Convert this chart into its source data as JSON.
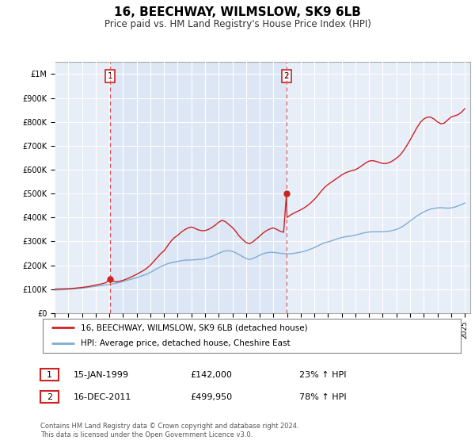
{
  "title": "16, BEECHWAY, WILMSLOW, SK9 6LB",
  "subtitle": "Price paid vs. HM Land Registry's House Price Index (HPI)",
  "title_fontsize": 11,
  "subtitle_fontsize": 8.5,
  "ylim": [
    0,
    1050000
  ],
  "yticks": [
    0,
    100000,
    200000,
    300000,
    400000,
    500000,
    600000,
    700000,
    800000,
    900000,
    1000000
  ],
  "ytick_labels": [
    "£0",
    "£100K",
    "£200K",
    "£300K",
    "£400K",
    "£500K",
    "£600K",
    "£700K",
    "£800K",
    "£900K",
    "£1M"
  ],
  "background_color": "#ffffff",
  "chart_bg_color": "#e8eef8",
  "grid_color": "#ffffff",
  "transaction1": {
    "date_num": 1999.04,
    "price": 142000
  },
  "transaction2": {
    "date_num": 2011.96,
    "price": 499950
  },
  "vline_color": "#e05050",
  "hpi_line_color": "#7bafd4",
  "price_line_color": "#cc2222",
  "shaded_region_color": "#dce6f5",
  "legend_label_red": "16, BEECHWAY, WILMSLOW, SK9 6LB (detached house)",
  "legend_label_blue": "HPI: Average price, detached house, Cheshire East",
  "annotation1_label": "1",
  "annotation2_label": "2",
  "note1_num": "1",
  "note1_date": "15-JAN-1999",
  "note1_price": "£142,000",
  "note1_hpi": "23% ↑ HPI",
  "note2_num": "2",
  "note2_date": "16-DEC-2011",
  "note2_price": "£499,950",
  "note2_hpi": "78% ↑ HPI",
  "footer": "Contains HM Land Registry data © Crown copyright and database right 2024.\nThis data is licensed under the Open Government Licence v3.0.",
  "hpi_data": [
    [
      1995,
      96000
    ],
    [
      1995.25,
      97000
    ],
    [
      1995.5,
      97500
    ],
    [
      1995.75,
      98000
    ],
    [
      1996,
      99000
    ],
    [
      1996.25,
      100000
    ],
    [
      1996.5,
      101000
    ],
    [
      1996.75,
      102500
    ],
    [
      1997,
      104000
    ],
    [
      1997.25,
      106000
    ],
    [
      1997.5,
      108000
    ],
    [
      1997.75,
      110000
    ],
    [
      1998,
      112000
    ],
    [
      1998.25,
      114000
    ],
    [
      1998.5,
      116000
    ],
    [
      1998.75,
      118000
    ],
    [
      1999,
      120000
    ],
    [
      1999.25,
      122000
    ],
    [
      1999.5,
      125000
    ],
    [
      1999.75,
      128000
    ],
    [
      2000,
      132000
    ],
    [
      2000.25,
      136000
    ],
    [
      2000.5,
      140000
    ],
    [
      2000.75,
      144000
    ],
    [
      2001,
      148000
    ],
    [
      2001.25,
      153000
    ],
    [
      2001.5,
      158000
    ],
    [
      2001.75,
      163000
    ],
    [
      2002,
      170000
    ],
    [
      2002.25,
      178000
    ],
    [
      2002.5,
      186000
    ],
    [
      2002.75,
      194000
    ],
    [
      2003,
      200000
    ],
    [
      2003.25,
      206000
    ],
    [
      2003.5,
      210000
    ],
    [
      2003.75,
      213000
    ],
    [
      2004,
      216000
    ],
    [
      2004.25,
      219000
    ],
    [
      2004.5,
      221000
    ],
    [
      2004.75,
      222000
    ],
    [
      2005,
      222000
    ],
    [
      2005.25,
      223000
    ],
    [
      2005.5,
      224000
    ],
    [
      2005.75,
      225000
    ],
    [
      2006,
      228000
    ],
    [
      2006.25,
      232000
    ],
    [
      2006.5,
      237000
    ],
    [
      2006.75,
      243000
    ],
    [
      2007,
      250000
    ],
    [
      2007.25,
      256000
    ],
    [
      2007.5,
      260000
    ],
    [
      2007.75,
      261000
    ],
    [
      2008,
      258000
    ],
    [
      2008.25,
      252000
    ],
    [
      2008.5,
      244000
    ],
    [
      2008.75,
      236000
    ],
    [
      2009,
      228000
    ],
    [
      2009.25,
      224000
    ],
    [
      2009.5,
      228000
    ],
    [
      2009.75,
      235000
    ],
    [
      2010,
      242000
    ],
    [
      2010.25,
      248000
    ],
    [
      2010.5,
      252000
    ],
    [
      2010.75,
      254000
    ],
    [
      2011,
      254000
    ],
    [
      2011.25,
      252000
    ],
    [
      2011.5,
      250000
    ],
    [
      2011.75,
      249000
    ],
    [
      2012,
      248000
    ],
    [
      2012.25,
      248000
    ],
    [
      2012.5,
      250000
    ],
    [
      2012.75,
      252000
    ],
    [
      2013,
      255000
    ],
    [
      2013.25,
      258000
    ],
    [
      2013.5,
      263000
    ],
    [
      2013.75,
      268000
    ],
    [
      2014,
      274000
    ],
    [
      2014.25,
      281000
    ],
    [
      2014.5,
      288000
    ],
    [
      2014.75,
      294000
    ],
    [
      2015,
      298000
    ],
    [
      2015.25,
      302000
    ],
    [
      2015.5,
      307000
    ],
    [
      2015.75,
      312000
    ],
    [
      2016,
      316000
    ],
    [
      2016.25,
      319000
    ],
    [
      2016.5,
      321000
    ],
    [
      2016.75,
      323000
    ],
    [
      2017,
      326000
    ],
    [
      2017.25,
      330000
    ],
    [
      2017.5,
      334000
    ],
    [
      2017.75,
      337000
    ],
    [
      2018,
      339000
    ],
    [
      2018.25,
      340000
    ],
    [
      2018.5,
      340000
    ],
    [
      2018.75,
      340000
    ],
    [
      2019,
      340000
    ],
    [
      2019.25,
      341000
    ],
    [
      2019.5,
      343000
    ],
    [
      2019.75,
      346000
    ],
    [
      2020,
      350000
    ],
    [
      2020.25,
      356000
    ],
    [
      2020.5,
      364000
    ],
    [
      2020.75,
      374000
    ],
    [
      2021,
      385000
    ],
    [
      2021.25,
      396000
    ],
    [
      2021.5,
      406000
    ],
    [
      2021.75,
      415000
    ],
    [
      2022,
      423000
    ],
    [
      2022.25,
      430000
    ],
    [
      2022.5,
      435000
    ],
    [
      2022.75,
      438000
    ],
    [
      2023,
      440000
    ],
    [
      2023.25,
      441000
    ],
    [
      2023.5,
      440000
    ],
    [
      2023.75,
      439000
    ],
    [
      2024,
      440000
    ],
    [
      2024.25,
      443000
    ],
    [
      2024.5,
      448000
    ],
    [
      2024.75,
      454000
    ],
    [
      2025,
      460000
    ]
  ],
  "price_data": [
    [
      1995,
      100000
    ],
    [
      1995.25,
      100500
    ],
    [
      1995.5,
      101000
    ],
    [
      1995.75,
      101500
    ],
    [
      1996,
      102000
    ],
    [
      1996.25,
      103000
    ],
    [
      1996.5,
      104000
    ],
    [
      1996.75,
      105500
    ],
    [
      1997,
      107000
    ],
    [
      1997.25,
      109000
    ],
    [
      1997.5,
      111000
    ],
    [
      1997.75,
      114000
    ],
    [
      1998,
      117000
    ],
    [
      1998.25,
      120000
    ],
    [
      1998.5,
      123000
    ],
    [
      1998.75,
      127000
    ],
    [
      1999.04,
      142000
    ],
    [
      1999.25,
      134000
    ],
    [
      1999.5,
      130000
    ],
    [
      1999.75,
      133000
    ],
    [
      2000,
      137000
    ],
    [
      2000.25,
      142000
    ],
    [
      2000.5,
      148000
    ],
    [
      2000.75,
      155000
    ],
    [
      2001,
      162000
    ],
    [
      2001.25,
      170000
    ],
    [
      2001.5,
      178000
    ],
    [
      2001.75,
      188000
    ],
    [
      2002,
      200000
    ],
    [
      2002.25,
      216000
    ],
    [
      2002.5,
      232000
    ],
    [
      2002.75,
      248000
    ],
    [
      2003,
      260000
    ],
    [
      2003.25,
      280000
    ],
    [
      2003.5,
      300000
    ],
    [
      2003.75,
      315000
    ],
    [
      2004,
      325000
    ],
    [
      2004.25,
      338000
    ],
    [
      2004.5,
      348000
    ],
    [
      2004.75,
      356000
    ],
    [
      2005,
      360000
    ],
    [
      2005.25,
      355000
    ],
    [
      2005.5,
      348000
    ],
    [
      2005.75,
      345000
    ],
    [
      2006,
      345000
    ],
    [
      2006.25,
      350000
    ],
    [
      2006.5,
      358000
    ],
    [
      2006.75,
      368000
    ],
    [
      2007,
      380000
    ],
    [
      2007.25,
      388000
    ],
    [
      2007.5,
      382000
    ],
    [
      2007.75,
      370000
    ],
    [
      2008,
      358000
    ],
    [
      2008.25,
      342000
    ],
    [
      2008.5,
      322000
    ],
    [
      2008.75,
      308000
    ],
    [
      2009,
      295000
    ],
    [
      2009.25,
      290000
    ],
    [
      2009.5,
      298000
    ],
    [
      2009.75,
      310000
    ],
    [
      2010,
      322000
    ],
    [
      2010.25,
      335000
    ],
    [
      2010.5,
      345000
    ],
    [
      2010.75,
      352000
    ],
    [
      2011,
      356000
    ],
    [
      2011.25,
      350000
    ],
    [
      2011.5,
      342000
    ],
    [
      2011.75,
      338000
    ],
    [
      2011.96,
      499950
    ],
    [
      2012.0,
      400000
    ],
    [
      2012.25,
      410000
    ],
    [
      2012.5,
      418000
    ],
    [
      2012.75,
      425000
    ],
    [
      2013,
      432000
    ],
    [
      2013.25,
      440000
    ],
    [
      2013.5,
      450000
    ],
    [
      2013.75,
      462000
    ],
    [
      2014,
      476000
    ],
    [
      2014.25,
      492000
    ],
    [
      2014.5,
      510000
    ],
    [
      2014.75,
      526000
    ],
    [
      2015,
      538000
    ],
    [
      2015.25,
      548000
    ],
    [
      2015.5,
      558000
    ],
    [
      2015.75,
      568000
    ],
    [
      2016,
      578000
    ],
    [
      2016.25,
      586000
    ],
    [
      2016.5,
      592000
    ],
    [
      2016.75,
      596000
    ],
    [
      2017,
      600000
    ],
    [
      2017.25,
      608000
    ],
    [
      2017.5,
      618000
    ],
    [
      2017.75,
      628000
    ],
    [
      2018,
      636000
    ],
    [
      2018.25,
      638000
    ],
    [
      2018.5,
      635000
    ],
    [
      2018.75,
      630000
    ],
    [
      2019,
      626000
    ],
    [
      2019.25,
      626000
    ],
    [
      2019.5,
      630000
    ],
    [
      2019.75,
      638000
    ],
    [
      2020,
      648000
    ],
    [
      2020.25,
      660000
    ],
    [
      2020.5,
      678000
    ],
    [
      2020.75,
      700000
    ],
    [
      2021,
      724000
    ],
    [
      2021.25,
      750000
    ],
    [
      2021.5,
      776000
    ],
    [
      2021.75,
      798000
    ],
    [
      2022,
      812000
    ],
    [
      2022.25,
      820000
    ],
    [
      2022.5,
      820000
    ],
    [
      2022.75,
      812000
    ],
    [
      2023,
      800000
    ],
    [
      2023.25,
      792000
    ],
    [
      2023.5,
      795000
    ],
    [
      2023.75,
      808000
    ],
    [
      2024,
      820000
    ],
    [
      2024.25,
      825000
    ],
    [
      2024.5,
      830000
    ],
    [
      2024.75,
      840000
    ],
    [
      2025,
      855000
    ]
  ]
}
